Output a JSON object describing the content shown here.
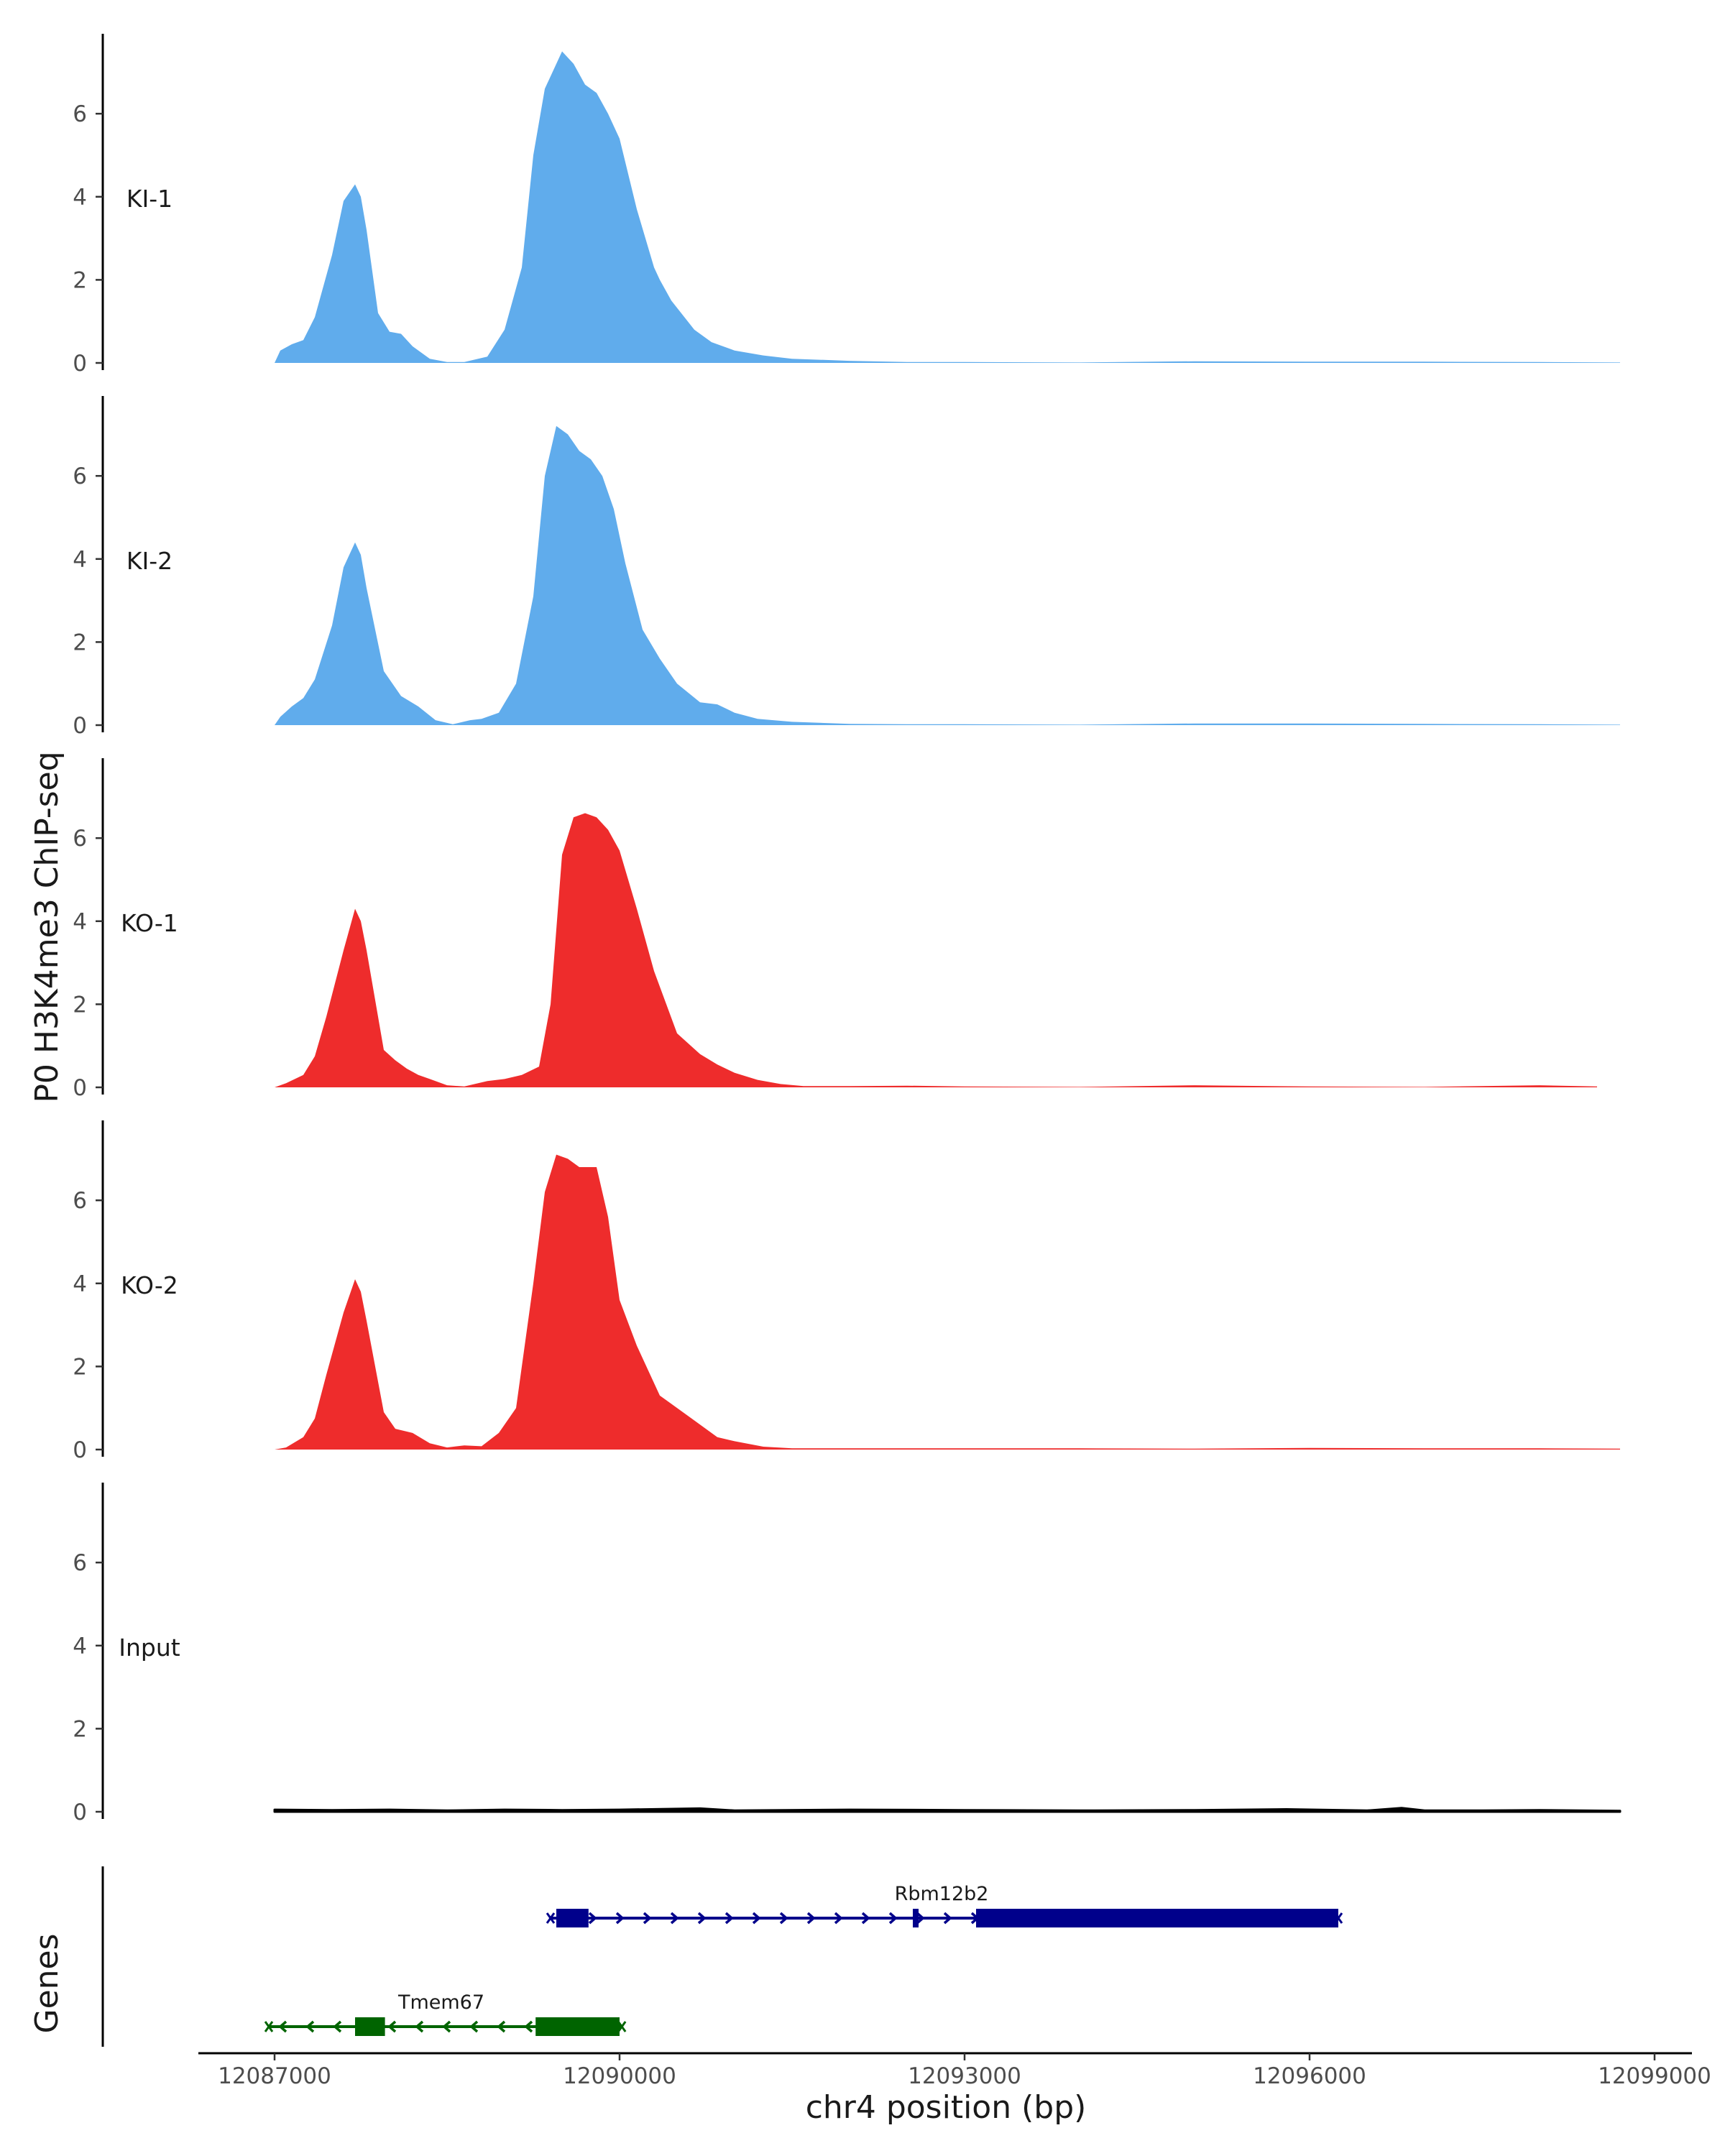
{
  "chart_data": {
    "type": "area",
    "title": "",
    "ylabel": "P0 H3K4me3 ChIP-seq",
    "xlabel": "chr4 position (bp)",
    "genes_panel_label": "Genes",
    "xlim": [
      12086350,
      12099300
    ],
    "ylim": [
      0,
      7.7
    ],
    "y_ticks": [
      0,
      2,
      4,
      6
    ],
    "x_ticks": [
      {
        "value": 12087000,
        "label": "12087000"
      },
      {
        "value": 12090000,
        "label": "12090000"
      },
      {
        "value": 12093000,
        "label": "12093000"
      },
      {
        "value": 12096000,
        "label": "12096000"
      },
      {
        "value": 12099000,
        "label": "12099000"
      }
    ],
    "colors": {
      "KI": "#60acec",
      "KO": "#ee2c2c",
      "Input": "#000000",
      "gene_plus": "#00008b",
      "gene_minus": "#006400",
      "axis": "#000000"
    },
    "series": [
      {
        "name": "KI-1",
        "color": "#60acec",
        "x": [
          12087000,
          12087050,
          12087150,
          12087250,
          12087350,
          12087500,
          12087600,
          12087700,
          12087750,
          12087800,
          12087900,
          12088000,
          12088100,
          12088200,
          12088350,
          12088500,
          12088650,
          12088850,
          12089000,
          12089150,
          12089250,
          12089350,
          12089500,
          12089600,
          12089700,
          12089800,
          12089900,
          12090000,
          12090150,
          12090300,
          12090350,
          12090450,
          12090650,
          12090800,
          12091000,
          12091250,
          12091500,
          12092000,
          12092500,
          12093000,
          12094000,
          12095000,
          12096000,
          12097000,
          12098000,
          12098700
        ],
        "y": [
          0,
          0.3,
          0.45,
          0.55,
          1.1,
          2.6,
          3.9,
          4.3,
          4.0,
          3.2,
          1.2,
          0.75,
          0.7,
          0.4,
          0.1,
          0.02,
          0.02,
          0.15,
          0.8,
          2.3,
          5.0,
          6.6,
          7.5,
          7.2,
          6.7,
          6.5,
          6.0,
          5.4,
          3.7,
          2.3,
          2.0,
          1.5,
          0.8,
          0.5,
          0.3,
          0.18,
          0.1,
          0.05,
          0.02,
          0.02,
          0.01,
          0.04,
          0.03,
          0.03,
          0.02,
          0.01
        ]
      },
      {
        "name": "KI-2",
        "color": "#60acec",
        "x": [
          12087000,
          12087050,
          12087150,
          12087250,
          12087350,
          12087500,
          12087600,
          12087700,
          12087750,
          12087800,
          12087950,
          12088100,
          12088250,
          12088400,
          12088550,
          12088700,
          12088800,
          12088950,
          12089100,
          12089250,
          12089350,
          12089450,
          12089550,
          12089650,
          12089750,
          12089850,
          12089950,
          12090050,
          12090200,
          12090350,
          12090500,
          12090700,
          12090850,
          12091000,
          12091200,
          12091500,
          12092000,
          12092500,
          12093000,
          12094000,
          12095000,
          12096000,
          12097000,
          12098000,
          12098700
        ],
        "y": [
          0,
          0.2,
          0.45,
          0.65,
          1.1,
          2.4,
          3.8,
          4.4,
          4.1,
          3.3,
          1.3,
          0.7,
          0.45,
          0.12,
          0.02,
          0.12,
          0.15,
          0.3,
          1.0,
          3.1,
          6.0,
          7.2,
          7.0,
          6.6,
          6.4,
          6.0,
          5.2,
          3.9,
          2.3,
          1.6,
          1.0,
          0.55,
          0.5,
          0.3,
          0.15,
          0.08,
          0.03,
          0.02,
          0.02,
          0.01,
          0.04,
          0.04,
          0.03,
          0.02,
          0.01
        ]
      },
      {
        "name": "KO-1",
        "color": "#ee2c2c",
        "x": [
          12087000,
          12087100,
          12087250,
          12087350,
          12087450,
          12087600,
          12087700,
          12087750,
          12087800,
          12087950,
          12088050,
          12088150,
          12088250,
          12088350,
          12088500,
          12088650,
          12088850,
          12089000,
          12089150,
          12089300,
          12089400,
          12089500,
          12089600,
          12089700,
          12089800,
          12089900,
          12090000,
          12090150,
          12090300,
          12090500,
          12090700,
          12090850,
          12091000,
          12091200,
          12091400,
          12091600,
          12092000,
          12092500,
          12093000,
          12094000,
          12095000,
          12096000,
          12097000,
          12098000,
          12098500
        ],
        "y": [
          0,
          0.1,
          0.3,
          0.75,
          1.7,
          3.3,
          4.3,
          4.0,
          3.3,
          0.9,
          0.65,
          0.45,
          0.3,
          0.2,
          0.05,
          0.02,
          0.15,
          0.2,
          0.3,
          0.5,
          2.0,
          5.6,
          6.5,
          6.6,
          6.5,
          6.2,
          5.7,
          4.3,
          2.8,
          1.3,
          0.8,
          0.55,
          0.35,
          0.18,
          0.08,
          0.03,
          0.03,
          0.04,
          0.02,
          0.01,
          0.05,
          0.02,
          0.01,
          0.05,
          0.02
        ]
      },
      {
        "name": "KO-2",
        "color": "#ee2c2c",
        "x": [
          12087000,
          12087100,
          12087250,
          12087350,
          12087450,
          12087600,
          12087700,
          12087750,
          12087800,
          12087950,
          12088050,
          12088200,
          12088350,
          12088500,
          12088650,
          12088800,
          12088950,
          12089100,
          12089250,
          12089350,
          12089450,
          12089550,
          12089650,
          12089800,
          12089900,
          12090000,
          12090150,
          12090350,
          12090450,
          12090650,
          12090850,
          12091000,
          12091250,
          12091500,
          12092000,
          12092500,
          12093000,
          12094000,
          12095000,
          12096000,
          12097000,
          12098000,
          12098700
        ],
        "y": [
          0,
          0.05,
          0.3,
          0.75,
          1.8,
          3.3,
          4.1,
          3.8,
          3.1,
          0.9,
          0.5,
          0.4,
          0.15,
          0.05,
          0.1,
          0.08,
          0.4,
          1.0,
          4.0,
          6.2,
          7.1,
          7.0,
          6.8,
          6.8,
          5.6,
          3.6,
          2.5,
          1.3,
          1.1,
          0.7,
          0.3,
          0.2,
          0.07,
          0.03,
          0.03,
          0.03,
          0.03,
          0.03,
          0.02,
          0.04,
          0.03,
          0.03,
          0.02
        ]
      },
      {
        "name": "Input",
        "color": "#000000",
        "x": [
          12087000,
          12087500,
          12088000,
          12088500,
          12089000,
          12089500,
          12090000,
          12090700,
          12091000,
          12092000,
          12093000,
          12094000,
          12095000,
          12095800,
          12096500,
          12096800,
          12097000,
          12097500,
          12098000,
          12098700
        ],
        "y": [
          0.05,
          0.04,
          0.05,
          0.03,
          0.05,
          0.04,
          0.05,
          0.08,
          0.03,
          0.05,
          0.04,
          0.03,
          0.04,
          0.06,
          0.03,
          0.09,
          0.03,
          0.03,
          0.04,
          0.02
        ]
      }
    ],
    "genes": [
      {
        "name": "Rbm12b2",
        "strand": "+",
        "color": "#00008b",
        "start": 12089400,
        "end": 12096250,
        "row": 1,
        "label_pos": 12092800,
        "exons": [
          [
            12089450,
            12089730
          ],
          [
            12092550,
            12092590
          ],
          [
            12093100,
            12096250
          ]
        ]
      },
      {
        "name": "Tmem67",
        "strand": "-",
        "color": "#006400",
        "start": 12086950,
        "end": 12090020,
        "row": 2,
        "label_pos": 12088450,
        "exons": [
          [
            12087700,
            12087960
          ],
          [
            12089270,
            12090000
          ]
        ]
      }
    ]
  }
}
